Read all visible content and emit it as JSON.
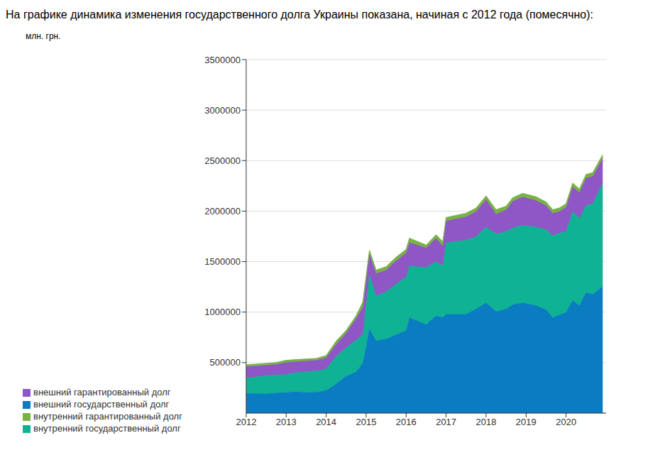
{
  "chart_data": {
    "type": "area",
    "title": "На графике динамика изменения государственного долга Украины показана, начиная с 2012 года (помесячно):",
    "y_label": "млн. грн.",
    "stacked": true,
    "grid": true,
    "legend": "bottom",
    "xlim": [
      2012,
      2021
    ],
    "xticks": [
      2012,
      2013,
      2014,
      2015,
      2016,
      2017,
      2018,
      2019,
      2020
    ],
    "ylim": [
      0,
      3500000
    ],
    "yticks": [
      500000,
      1000000,
      1500000,
      2000000,
      2500000,
      3000000,
      3500000
    ],
    "x": [
      2012.0,
      2012.25,
      2012.5,
      2012.75,
      2013.0,
      2013.25,
      2013.5,
      2013.75,
      2014.0,
      2014.25,
      2014.5,
      2014.75,
      2014.917,
      2015.083,
      2015.25,
      2015.5,
      2015.75,
      2016.0,
      2016.083,
      2016.5,
      2016.75,
      2016.917,
      2017.0,
      2017.5,
      2017.75,
      2018.0,
      2018.25,
      2018.5,
      2018.667,
      2018.917,
      2019.25,
      2019.5,
      2019.667,
      2019.833,
      2020.0,
      2020.167,
      2020.333,
      2020.5,
      2020.667,
      2020.917
    ],
    "series": [
      {
        "name": "внешний государственный долг",
        "color": "#0a7cc1",
        "values": [
          196000,
          195000,
          192000,
          200000,
          205000,
          212000,
          206000,
          208000,
          225000,
          290000,
          367000,
          410000,
          495000,
          836000,
          717000,
          734000,
          776000,
          819000,
          947000,
          879000,
          964000,
          947000,
          981000,
          981000,
          1032000,
          1092000,
          1007000,
          1032000,
          1075000,
          1092000,
          1066000,
          1024000,
          947000,
          973000,
          998000,
          1118000,
          1066000,
          1194000,
          1177000,
          1254000
        ]
      },
      {
        "name": "внутренний государственный долг",
        "color": "#10b294",
        "values": [
          154000,
          165000,
          180000,
          180000,
          179000,
          190000,
          205000,
          210000,
          215000,
          273000,
          281000,
          315000,
          281000,
          538000,
          443000,
          469000,
          504000,
          529000,
          512000,
          563000,
          538000,
          512000,
          708000,
          734000,
          717000,
          751000,
          768000,
          768000,
          759000,
          768000,
          777000,
          793000,
          811000,
          810000,
          802000,
          879000,
          862000,
          862000,
          896000,
          1024000
        ]
      },
      {
        "name": "внешний гарантированный долг",
        "color": "#8e57c5",
        "values": [
          111000,
          108000,
          104000,
          104000,
          119000,
          110000,
          108000,
          106000,
          110000,
          120000,
          145000,
          213000,
          273000,
          204000,
          222000,
          213000,
          230000,
          239000,
          230000,
          196000,
          230000,
          196000,
          214000,
          230000,
          248000,
          273000,
          196000,
          214000,
          265000,
          281000,
          264000,
          239000,
          222000,
          214000,
          239000,
          247000,
          256000,
          273000,
          273000,
          247000
        ]
      },
      {
        "name": "внутренний гарантированный долг",
        "color": "#78b244",
        "values": [
          17000,
          17000,
          16000,
          17000,
          20000,
          18000,
          17000,
          17000,
          20000,
          30000,
          26000,
          26000,
          51000,
          34000,
          34000,
          34000,
          34000,
          34000,
          43000,
          26000,
          34000,
          43000,
          34000,
          34000,
          34000,
          34000,
          43000,
          34000,
          34000,
          35000,
          35000,
          34000,
          34000,
          34000,
          34000,
          34000,
          34000,
          34000,
          34000,
          34000
        ]
      }
    ]
  }
}
